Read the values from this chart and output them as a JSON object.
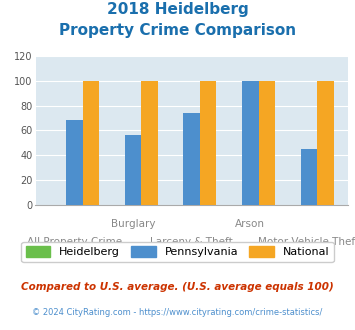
{
  "title_line1": "2018 Heidelberg",
  "title_line2": "Property Crime Comparison",
  "title_color": "#1a6fad",
  "categories": [
    "All Property Crime",
    "Burglary",
    "Larceny & Theft",
    "Arson",
    "Motor Vehicle Theft"
  ],
  "top_labels": [
    [
      1,
      "Burglary"
    ],
    [
      3,
      "Arson"
    ]
  ],
  "bottom_labels": [
    [
      0,
      "All Property Crime"
    ],
    [
      2,
      "Larceny & Theft"
    ],
    [
      4,
      "Motor Vehicle Theft"
    ]
  ],
  "heidelberg": [
    0,
    0,
    0,
    0,
    0
  ],
  "pennsylvania": [
    68,
    56,
    74,
    100,
    45
  ],
  "national": [
    100,
    100,
    100,
    100,
    100
  ],
  "heidelberg_color": "#6abf4b",
  "pennsylvania_color": "#4d8fcd",
  "national_color": "#f5a623",
  "ylim": [
    0,
    120
  ],
  "yticks": [
    0,
    20,
    40,
    60,
    80,
    100,
    120
  ],
  "bar_width": 0.28,
  "background_color": "#dce8f0",
  "legend_labels": [
    "Heidelberg",
    "Pennsylvania",
    "National"
  ],
  "footnote1": "Compared to U.S. average. (U.S. average equals 100)",
  "footnote2": "© 2024 CityRating.com - https://www.cityrating.com/crime-statistics/",
  "footnote1_color": "#cc3300",
  "footnote2_color": "#4d8fcd"
}
